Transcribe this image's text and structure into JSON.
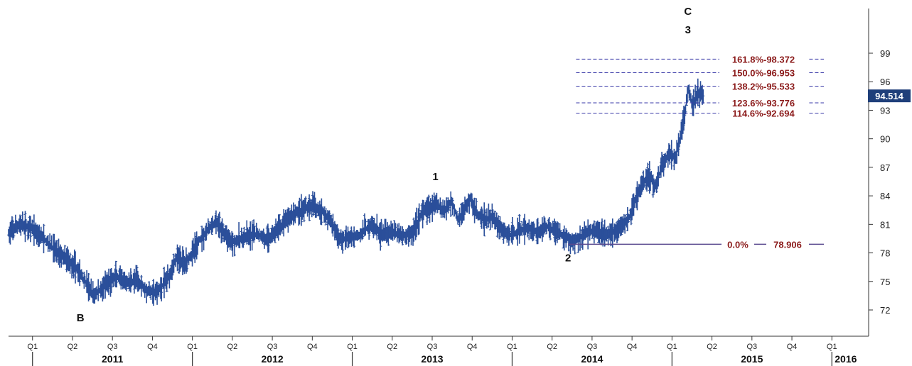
{
  "chart_data": {
    "type": "ohlc-bar",
    "y_axis": {
      "ticks": [
        "99",
        "96",
        "93",
        "90",
        "87",
        "84",
        "81",
        "78",
        "75",
        "72"
      ],
      "tick_values": [
        99,
        96,
        93,
        90,
        87,
        84,
        81,
        78,
        75,
        72
      ],
      "ylim": [
        70,
        102
      ],
      "position": "right"
    },
    "x_axis": {
      "quarters": [
        "Q1",
        "Q2",
        "Q3",
        "Q4",
        "Q1",
        "Q2",
        "Q3",
        "Q4",
        "Q1",
        "Q2",
        "Q3",
        "Q4",
        "Q1",
        "Q2",
        "Q3",
        "Q4",
        "Q1",
        "Q2",
        "Q3",
        "Q4",
        "Q1"
      ],
      "quarter_start": 2011.0,
      "years": [
        "2011",
        "2012",
        "2013",
        "2014",
        "2015",
        "2016"
      ],
      "year_values": [
        2011,
        2012,
        2013,
        2014,
        2015,
        2016
      ],
      "xlim": [
        2010.85,
        2016.23
      ]
    },
    "last_price": "94.514",
    "last_price_value": 94.514,
    "wave_labels": [
      {
        "text": "B",
        "x": 2011.3,
        "y": 72.6,
        "placement": "below"
      },
      {
        "text": "1",
        "x": 2013.52,
        "y": 84.6,
        "placement": "above"
      },
      {
        "text": "2",
        "x": 2014.35,
        "y": 78.9,
        "placement": "below"
      },
      {
        "text": "3",
        "x": 2015.1,
        "y": 95.7,
        "placement": "above-far"
      },
      {
        "text": "C",
        "x": 2015.1,
        "y": 95.7,
        "placement": "top"
      }
    ],
    "fib_levels": [
      {
        "label": "161.8%-98.372",
        "value": 98.372
      },
      {
        "label": "150.0%-96.953",
        "value": 96.953
      },
      {
        "label": "138.2%-95.533",
        "value": 95.533
      },
      {
        "label": "123.6%-93.776",
        "value": 93.776
      },
      {
        "label": "114.6%-92.694",
        "value": 92.694
      }
    ],
    "fib_line_start_x": 2014.4,
    "fib_line_end_x": 2015.95,
    "base_level": {
      "label": "0.0%",
      "value_text": "78.906",
      "value": 78.906,
      "start_x": 2014.35,
      "end_x": 2015.95
    },
    "series_path": [
      [
        2010.85,
        80.0
      ],
      [
        2010.92,
        81.0
      ],
      [
        2011.0,
        80.5
      ],
      [
        2011.07,
        79.5
      ],
      [
        2011.13,
        78.5
      ],
      [
        2011.2,
        77.5
      ],
      [
        2011.27,
        76.5
      ],
      [
        2011.33,
        75.0
      ],
      [
        2011.38,
        73.5
      ],
      [
        2011.45,
        74.5
      ],
      [
        2011.52,
        75.5
      ],
      [
        2011.58,
        74.8
      ],
      [
        2011.65,
        75.2
      ],
      [
        2011.72,
        74.0
      ],
      [
        2011.78,
        73.8
      ],
      [
        2011.85,
        75.5
      ],
      [
        2011.9,
        77.5
      ],
      [
        2011.95,
        77.0
      ],
      [
        2012.0,
        78.0
      ],
      [
        2012.05,
        79.5
      ],
      [
        2012.1,
        80.5
      ],
      [
        2012.15,
        81.2
      ],
      [
        2012.2,
        80.0
      ],
      [
        2012.25,
        79.2
      ],
      [
        2012.32,
        79.5
      ],
      [
        2012.4,
        80.0
      ],
      [
        2012.47,
        79.4
      ],
      [
        2012.55,
        80.8
      ],
      [
        2012.62,
        82.0
      ],
      [
        2012.68,
        82.5
      ],
      [
        2012.75,
        83.0
      ],
      [
        2012.82,
        82.3
      ],
      [
        2012.87,
        81.2
      ],
      [
        2012.92,
        79.5
      ],
      [
        2012.98,
        79.5
      ],
      [
        2013.05,
        80.0
      ],
      [
        2013.12,
        81.0
      ],
      [
        2013.18,
        80.0
      ],
      [
        2013.25,
        80.2
      ],
      [
        2013.32,
        79.8
      ],
      [
        2013.38,
        80.2
      ],
      [
        2013.43,
        82.0
      ],
      [
        2013.48,
        82.8
      ],
      [
        2013.53,
        83.0
      ],
      [
        2013.58,
        82.5
      ],
      [
        2013.62,
        83.5
      ],
      [
        2013.66,
        81.5
      ],
      [
        2013.7,
        82.5
      ],
      [
        2013.74,
        83.8
      ],
      [
        2013.78,
        82.0
      ],
      [
        2013.83,
        81.5
      ],
      [
        2013.88,
        81.8
      ],
      [
        2013.93,
        80.5
      ],
      [
        2013.98,
        79.8
      ],
      [
        2014.04,
        80.3
      ],
      [
        2014.1,
        80.6
      ],
      [
        2014.16,
        80.2
      ],
      [
        2014.22,
        80.8
      ],
      [
        2014.28,
        80.2
      ],
      [
        2014.34,
        79.6
      ],
      [
        2014.38,
        79.2
      ],
      [
        2014.42,
        79.6
      ],
      [
        2014.48,
        80.3
      ],
      [
        2014.54,
        80.2
      ],
      [
        2014.6,
        79.9
      ],
      [
        2014.65,
        80.3
      ],
      [
        2014.7,
        81.0
      ],
      [
        2014.74,
        82.0
      ],
      [
        2014.78,
        84.0
      ],
      [
        2014.82,
        85.5
      ],
      [
        2014.86,
        86.0
      ],
      [
        2014.9,
        85.0
      ],
      [
        2014.94,
        87.5
      ],
      [
        2014.98,
        88.2
      ],
      [
        2015.02,
        88.0
      ],
      [
        2015.05,
        90.0
      ],
      [
        2015.08,
        92.5
      ],
      [
        2015.1,
        95.4
      ],
      [
        2015.13,
        93.5
      ],
      [
        2015.16,
        94.8
      ],
      [
        2015.2,
        94.5
      ]
    ]
  }
}
